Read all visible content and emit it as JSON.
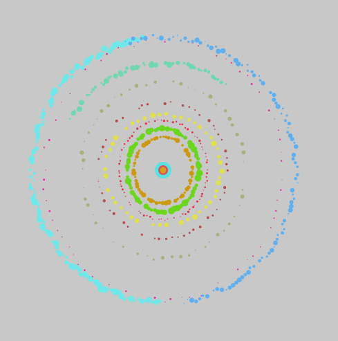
{
  "canvas": {
    "background": "#c8c8c8"
  },
  "center": {
    "halo_color": "#57e3e3",
    "core_color": "#e05050",
    "inner_color": "#d4a020"
  },
  "rings": [
    {
      "name": "ring-inner-gold",
      "color": "#cc9a10",
      "count": 60,
      "min_size": 2.0,
      "max_size": 6.0,
      "start": 0.0,
      "end": 1.0,
      "density": 0.9
    },
    {
      "name": "ring-lime",
      "color": "#6ad61c",
      "count": 70,
      "min_size": 3.5,
      "max_size": 8.0,
      "start": 0.0,
      "end": 1.0,
      "density": 0.9
    },
    {
      "name": "ring-red-dots",
      "color": "#e03a50",
      "count": 90,
      "min_size": 1.0,
      "max_size": 2.8,
      "start": 0.0,
      "end": 1.0,
      "density": 0.85
    },
    {
      "name": "ring-yellow",
      "color": "#e0e04a",
      "count": 50,
      "min_size": 3.0,
      "max_size": 6.5,
      "start": 0.0,
      "end": 1.0,
      "density": 0.85
    },
    {
      "name": "ring-brick",
      "color": "#b05050",
      "count": 70,
      "min_size": 1.0,
      "max_size": 3.5,
      "start": 0.0,
      "end": 1.0,
      "density": 0.8
    },
    {
      "name": "ring-olive",
      "color": "#a8b080",
      "count": 60,
      "min_size": 1.0,
      "max_size": 5.0,
      "start": 0.0,
      "end": 1.0,
      "density": 0.8
    },
    {
      "name": "ring-magenta",
      "color": "#e030a0",
      "count": 80,
      "min_size": 0.8,
      "max_size": 2.4,
      "start": 0.0,
      "end": 1.0,
      "density": 0.75
    },
    {
      "name": "ring-outer-cyan",
      "color": "#6ee8e8",
      "count": 110,
      "min_size": 2.0,
      "max_size": 8.0,
      "start": 0.0,
      "end": 0.45,
      "density": 0.95
    },
    {
      "name": "ring-outer-blue",
      "color": "#60b0f0",
      "count": 110,
      "min_size": 1.0,
      "max_size": 6.0,
      "start": 0.45,
      "end": 1.0,
      "density": 0.9
    },
    {
      "name": "ring-seafoam",
      "color": "#70d8b0",
      "count": 50,
      "min_size": 2.0,
      "max_size": 7.0,
      "start": 0.0,
      "end": 1.0,
      "density": 0.9
    }
  ]
}
